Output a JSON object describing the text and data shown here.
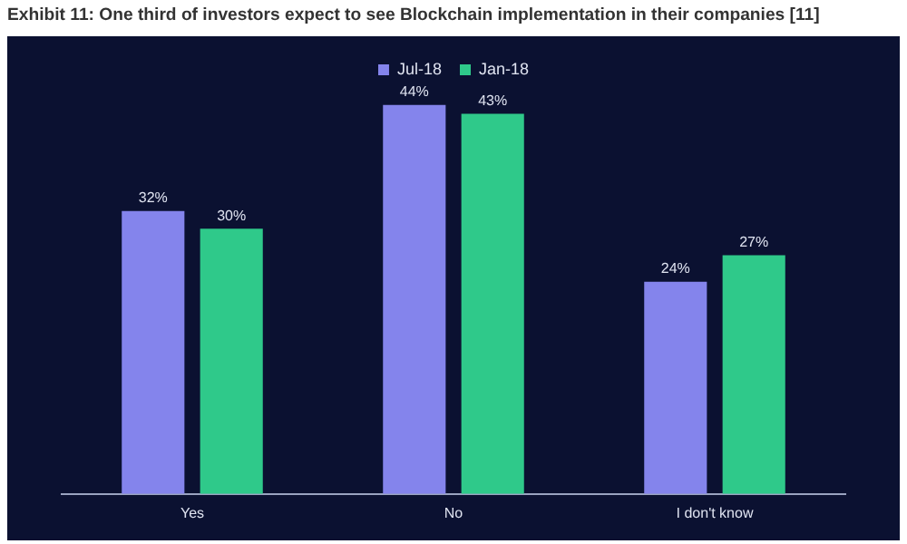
{
  "chart_data": {
    "type": "bar",
    "title": "Exhibit 11: One third of investors expect to see Blockchain implementation in their companies [11]",
    "categories": [
      "Yes",
      "No",
      "I don't know"
    ],
    "series": [
      {
        "name": "Jul-18",
        "color": "#8484ec",
        "values": [
          32,
          44,
          24
        ],
        "value_labels": [
          "32%",
          "44%",
          "24%"
        ]
      },
      {
        "name": "Jan-18",
        "color": "#2fc98a",
        "values": [
          30,
          43,
          27
        ],
        "value_labels": [
          "30%",
          "43%",
          "27%"
        ]
      }
    ],
    "legend": "top",
    "grid": false,
    "tick_labels": "x"
  }
}
